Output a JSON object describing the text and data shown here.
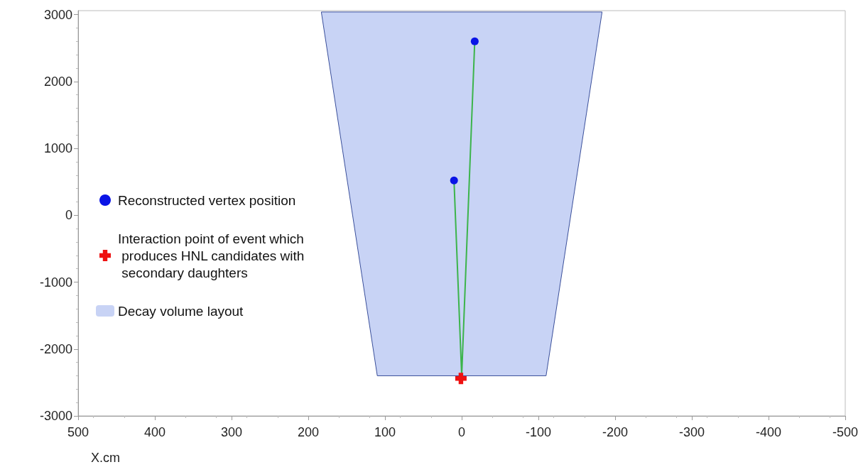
{
  "chart_data": {
    "type": "scatter",
    "xlabel": "X.cm",
    "xlim": [
      500,
      -500
    ],
    "xticks": [
      500,
      400,
      300,
      200,
      100,
      0,
      -100,
      -200,
      -300,
      -400,
      -500
    ],
    "ylim": [
      -3000,
      3060
    ],
    "yticks": [
      -3000,
      -2000,
      -1000,
      0,
      1000,
      2000,
      3000
    ],
    "legend": "left",
    "series": [
      {
        "name": "Reconstructed vertex position",
        "color": "#0a14e6",
        "marker": "circle",
        "x": [
          -17,
          10
        ],
        "values": [
          2600,
          520
        ]
      },
      {
        "name": "Interaction point of event which produces HNL candidates with secondary daughters",
        "color": "#ee1111",
        "marker": "cross",
        "x": [
          1
        ],
        "values": [
          -2440
        ]
      },
      {
        "type": "area",
        "name": "Decay volume layout",
        "color": "#c8d3f5",
        "x": [
          183,
          110,
          -110,
          -183
        ],
        "values": [
          3040,
          -2400,
          -2400,
          3040
        ]
      },
      {
        "type": "line",
        "color": "#3cb44b",
        "x": [
          0,
          -17
        ],
        "values": [
          -2400,
          2600
        ]
      },
      {
        "type": "line",
        "color": "#3cb44b",
        "x": [
          0,
          10
        ],
        "values": [
          -2400,
          520
        ]
      }
    ]
  }
}
